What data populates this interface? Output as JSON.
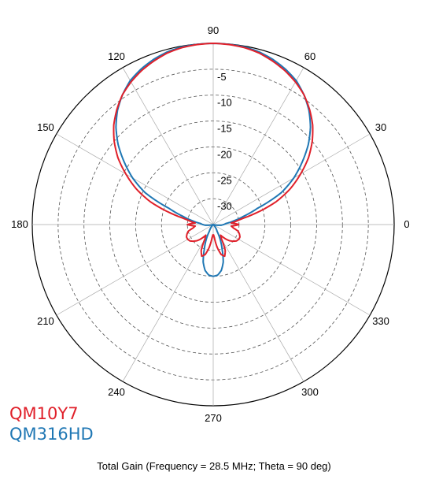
{
  "chart_data": {
    "type": "polar-line",
    "title": "Total Gain (Frequency = 28.5 MHz; Theta = 90 deg)",
    "angle_ticks": [
      0,
      30,
      60,
      90,
      120,
      150,
      180,
      210,
      240,
      270,
      300,
      330
    ],
    "angle_tick_labels": [
      "0",
      "30",
      "60",
      "90",
      "120",
      "150",
      "180",
      "210",
      "240",
      "270",
      "300",
      "330"
    ],
    "radial_ticks": [
      -5,
      -10,
      -15,
      -20,
      -25,
      -30
    ],
    "radial_tick_labels": [
      "-5",
      "-10",
      "-15",
      "-20",
      "-25",
      "-30"
    ],
    "radial_range": [
      -35,
      0
    ],
    "grid": true,
    "angle_direction": "counterclockwise",
    "zero_direction": "right",
    "legend_position": "bottom-left",
    "series": [
      {
        "name": "QM10Y7",
        "color": "#e0202a",
        "theta": [
          0,
          5,
          10,
          12,
          15,
          20,
          25,
          30,
          35,
          40,
          45,
          50,
          55,
          60,
          65,
          70,
          75,
          80,
          85,
          90,
          95,
          100,
          105,
          110,
          115,
          120,
          125,
          130,
          135,
          140,
          145,
          150,
          155,
          160,
          165,
          168,
          170,
          175,
          180,
          185,
          190,
          195,
          200,
          205,
          210,
          215,
          220,
          225,
          230,
          235,
          240,
          245,
          250,
          255,
          260,
          265,
          268,
          270,
          272,
          275,
          280,
          285,
          290,
          295,
          300,
          305,
          310,
          315,
          320,
          325,
          330,
          335,
          340,
          345,
          350,
          355,
          360
        ],
        "gain_db": [
          -30,
          -31.5,
          -30,
          -29,
          -26.5,
          -22,
          -18.5,
          -15.5,
          -12.5,
          -10,
          -7.8,
          -6,
          -4.4,
          -3.2,
          -2.2,
          -1.4,
          -0.7,
          -0.3,
          -0.1,
          0,
          -0.1,
          -0.3,
          -0.7,
          -1.4,
          -2.2,
          -3.2,
          -4.4,
          -6,
          -7.8,
          -10,
          -12.5,
          -15.5,
          -18.5,
          -22,
          -26.5,
          -29,
          -30,
          -31.5,
          -30,
          -31.5,
          -31,
          -30,
          -29.6,
          -29.3,
          -29.3,
          -29.5,
          -30,
          -30.6,
          -31.5,
          -32.5,
          -31.8,
          -29.5,
          -28.5,
          -29,
          -30.5,
          -32.5,
          -33,
          -33,
          -33,
          -32.5,
          -30.5,
          -29,
          -28.5,
          -29.5,
          -31.8,
          -32.5,
          -31.5,
          -30.6,
          -30,
          -29.5,
          -29.3,
          -29.3,
          -29.6,
          -30,
          -31,
          -31.5,
          -30
        ]
      },
      {
        "name": "QM316HD",
        "color": "#1f77b4",
        "theta": [
          0,
          5,
          10,
          15,
          20,
          25,
          30,
          35,
          40,
          45,
          50,
          55,
          60,
          65,
          70,
          75,
          80,
          85,
          90,
          95,
          100,
          105,
          110,
          115,
          120,
          125,
          130,
          135,
          140,
          145,
          150,
          155,
          160,
          165,
          170,
          175,
          180,
          185,
          190,
          195,
          200,
          210,
          220,
          230,
          240,
          250,
          255,
          260,
          265,
          270,
          275,
          280,
          285,
          290,
          300,
          310,
          320,
          330,
          340,
          345,
          350,
          355,
          360
        ],
        "gain_db": [
          -33,
          -32.5,
          -31,
          -29,
          -26,
          -20.5,
          -17,
          -14,
          -11,
          -8.4,
          -6.2,
          -4.4,
          -2.9,
          -1.9,
          -1.1,
          -0.5,
          -0.15,
          -0.05,
          0,
          -0.05,
          -0.15,
          -0.5,
          -1.1,
          -1.9,
          -2.9,
          -4.4,
          -6.2,
          -8.4,
          -11,
          -14,
          -17,
          -20.5,
          -26,
          -29,
          -31,
          -32.5,
          -33,
          -33.5,
          -34.5,
          -35,
          -35,
          -35,
          -35,
          -34.5,
          -33.5,
          -30,
          -27.5,
          -26,
          -25.2,
          -25,
          -25.2,
          -26,
          -27.5,
          -30,
          -33.5,
          -34.5,
          -35,
          -35,
          -35,
          -35,
          -34.5,
          -33.5,
          -33
        ]
      }
    ]
  }
}
